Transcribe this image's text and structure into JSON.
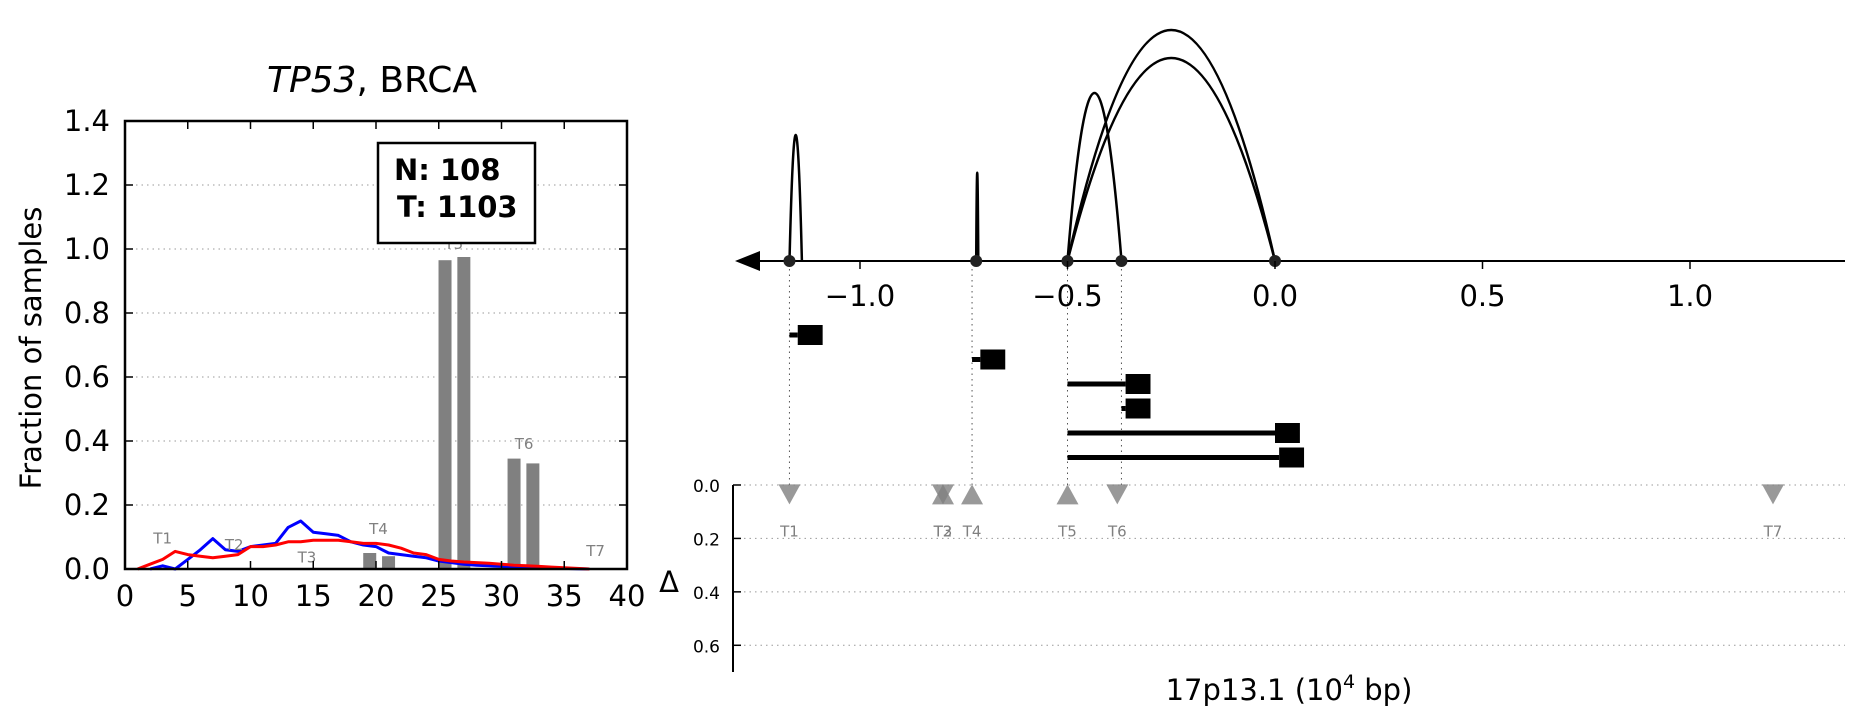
{
  "chart_data": [
    {
      "type": "bar",
      "title_gene": "TP53",
      "title_rest": ", BRCA",
      "ylabel": "Fraction of samples",
      "xlim": [
        0,
        40
      ],
      "ylim": [
        0,
        1.4
      ],
      "xticks": [
        0,
        5,
        10,
        15,
        20,
        25,
        30,
        35,
        40
      ],
      "xtick_labels": [
        "0",
        "5",
        "10",
        "15",
        "20",
        "25",
        "30",
        "35",
        "40"
      ],
      "yticks": [
        0,
        0.2,
        0.4,
        0.6,
        0.8,
        1.0,
        1.2,
        1.4
      ],
      "ytick_labels": [
        "0.0",
        "0.2",
        "0.4",
        "0.6",
        "0.8",
        "1.0",
        "1.2",
        "1.4"
      ],
      "grid": "horizontal dotted",
      "legend_lines": [
        "N: 108",
        "T: 1103"
      ],
      "legend_position": "top-center",
      "bar_color": "#808080",
      "bars": [
        {
          "label": "T4",
          "x": [
            19.5,
            21
          ],
          "values": [
            0.05,
            0.04
          ]
        },
        {
          "label": "T5",
          "x": [
            25.5,
            27
          ],
          "values": [
            0.965,
            0.975
          ]
        },
        {
          "label": "T6",
          "x": [
            31,
            32.5
          ],
          "values": [
            0.345,
            0.33
          ]
        }
      ],
      "transcript_labels": [
        {
          "label": "T1",
          "x": 3,
          "y": 0.08
        },
        {
          "label": "T2",
          "x": 8.7,
          "y": 0.06
        },
        {
          "label": "T3",
          "x": 14.5,
          "y": 0.02
        },
        {
          "label": "T4",
          "x": 20.2,
          "y": 0.11
        },
        {
          "label": "T5",
          "x": 26.2,
          "y": 1.0
        },
        {
          "label": "T6",
          "x": 31.8,
          "y": 0.375
        },
        {
          "label": "T7",
          "x": 37.5,
          "y": 0.04
        }
      ],
      "series": [
        {
          "color": "#0000ff",
          "x": [
            2,
            3,
            4,
            5,
            6,
            7,
            8,
            9,
            10,
            11,
            12,
            13,
            14,
            15,
            16,
            17,
            18,
            19,
            20,
            21,
            22,
            23,
            24,
            25,
            26,
            27,
            28,
            29,
            30,
            31,
            32,
            33,
            34,
            35,
            36,
            37
          ],
          "values": [
            0,
            0.01,
            0,
            0.03,
            0.06,
            0.095,
            0.06,
            0.055,
            0.07,
            0.075,
            0.08,
            0.13,
            0.15,
            0.115,
            0.11,
            0.105,
            0.085,
            0.075,
            0.07,
            0.05,
            0.045,
            0.04,
            0.035,
            0.025,
            0.02,
            0.015,
            0.012,
            0.01,
            0.008,
            0.006,
            0.005,
            0.004,
            0.003,
            0.002,
            0.001,
            0
          ]
        },
        {
          "color": "#ff0000",
          "x": [
            1,
            2,
            3,
            4,
            5,
            6,
            7,
            8,
            9,
            10,
            11,
            12,
            13,
            14,
            15,
            16,
            17,
            18,
            19,
            20,
            21,
            22,
            23,
            24,
            25,
            26,
            27,
            28,
            29,
            30,
            31,
            32,
            33,
            34,
            35,
            36,
            37
          ],
          "values": [
            0,
            0.015,
            0.03,
            0.055,
            0.045,
            0.04,
            0.035,
            0.04,
            0.045,
            0.07,
            0.07,
            0.075,
            0.085,
            0.085,
            0.09,
            0.09,
            0.09,
            0.085,
            0.08,
            0.08,
            0.075,
            0.065,
            0.05,
            0.045,
            0.03,
            0.025,
            0.022,
            0.02,
            0.018,
            0.015,
            0.012,
            0.01,
            0.008,
            0.006,
            0.004,
            0.002,
            0
          ]
        }
      ]
    },
    {
      "type": "diagram",
      "xlabel_main": "17p13.1 (10",
      "xlabel_sup": "4",
      "xlabel_end": " bp)",
      "xlim": [
        -1.3,
        1.35
      ],
      "xticks": [
        -1.0,
        -0.5,
        0.0,
        0.5,
        1.0
      ],
      "xtick_labels": [
        "−1.0",
        "−0.5",
        "0.0",
        "0.5",
        "1.0"
      ],
      "arrow_direction": "left",
      "splice_nodes": [
        -1.17,
        -0.72,
        -0.5,
        -0.37,
        0.0
      ],
      "junction_arcs": [
        {
          "from": -1.17,
          "to": -1.14,
          "height": 0.9
        },
        {
          "from": -0.72,
          "to": -0.715,
          "height": 0.63
        },
        {
          "from": -0.5,
          "to": -0.37,
          "height": 1.2
        },
        {
          "from": -0.5,
          "to": 0.0,
          "height": 1.65
        },
        {
          "from": -0.5,
          "to": 0.0,
          "height": 1.45
        }
      ],
      "transcripts": [
        {
          "start": -1.17,
          "end": -1.15,
          "box": [
            -1.15,
            -1.09
          ]
        },
        {
          "start": -0.73,
          "end": -0.71,
          "box": [
            -0.71,
            -0.65
          ]
        },
        {
          "start": -0.5,
          "end": -0.36,
          "box": [
            -0.36,
            -0.3
          ]
        },
        {
          "start": -0.37,
          "end": -0.36,
          "box": [
            -0.36,
            -0.3
          ]
        },
        {
          "start": -0.5,
          "end": 0.0,
          "box": [
            0.0,
            0.06
          ]
        },
        {
          "start": -0.5,
          "end": 0.01,
          "box": [
            0.01,
            0.07
          ]
        }
      ],
      "delta_axis_label": "Δ",
      "delta_ylim": [
        0,
        0.7
      ],
      "delta_yticks": [
        0.0,
        0.2,
        0.4,
        0.6
      ],
      "delta_ytick_labels": [
        "0.0",
        "0.2",
        "0.4",
        "0.6"
      ],
      "marker_color": "#808080",
      "delta_markers": [
        {
          "label": "T1",
          "x": -1.17,
          "dir": "down"
        },
        {
          "label": "T2",
          "x": -0.8,
          "dir": "down"
        },
        {
          "label": "T3",
          "x": -0.8,
          "dir": "up"
        },
        {
          "label": "T4",
          "x": -0.73,
          "dir": "up"
        },
        {
          "label": "T5",
          "x": -0.5,
          "dir": "up"
        },
        {
          "label": "T6",
          "x": -0.38,
          "dir": "down"
        },
        {
          "label": "T7",
          "x": 1.2,
          "dir": "down"
        }
      ]
    }
  ]
}
